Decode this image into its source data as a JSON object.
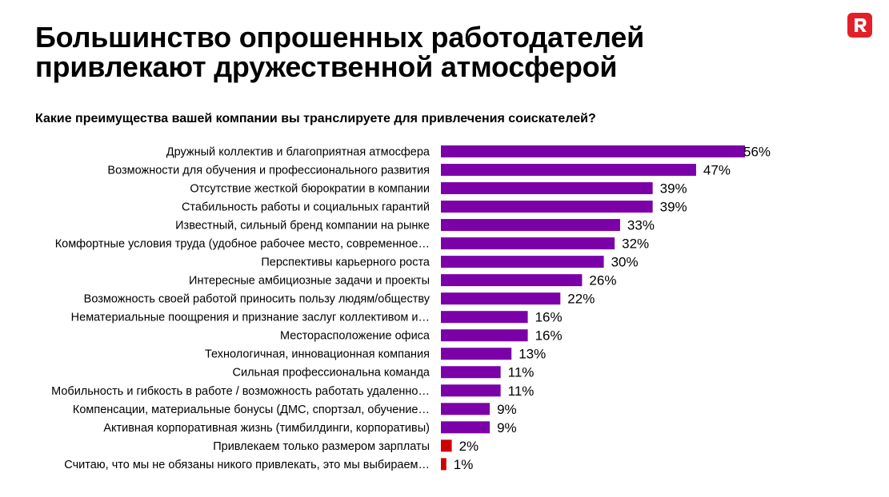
{
  "slide": {
    "title_line1": "Большинство опрошенных работодателей",
    "title_line2": "привлекают дружественной атмосферой",
    "question": "Какие преимущества вашей компании вы транслируете для привлечения соискателей?"
  },
  "logo": {
    "icon": "r-logo-icon",
    "color": "#e1202a"
  },
  "colors": {
    "main_bar": "#7b00a8",
    "highlight_bar": "#cc0000"
  },
  "chart_data": {
    "type": "bar",
    "orientation": "horizontal",
    "title": "Какие преимущества вашей компании вы транслируете для привлечения соискателей?",
    "value_suffix": "%",
    "xlim": [
      0,
      56
    ],
    "categories": [
      "Дружный коллектив и благоприятная атмосфера",
      "Возможности для обучения и профессионального развития",
      "Отсутствие жесткой бюрократии в компании",
      "Стабильность работы и социальных гарантий",
      "Известный, сильный бренд компании на рынке",
      "Комфортные условия труда (удобное рабочее место, современное…",
      "Перспективы карьерного роста",
      "Интересные амбициозные задачи и проекты",
      "Возможность своей работой приносить пользу людям/обществу",
      "Нематериальные поощрения и признание заслуг коллективом и…",
      "Месторасположение офиса",
      "Технологичная, инновационная компания",
      "Сильная профессиональна команда",
      "Мобильность и гибкость в работе / возможность работать удаленно…",
      "Компенсации, материальные бонусы (ДМС, спортзал, обучение…",
      "Активная корпоративная жизнь (тимбилдинги, корпоративы)",
      "Привлекаем только размером зарплаты",
      "Считаю, что мы не обязаны никого привлекать, это мы выбираем…"
    ],
    "values": [
      56,
      47,
      39,
      39,
      33,
      32,
      30,
      26,
      22,
      16,
      16,
      13,
      11,
      11,
      9,
      9,
      2,
      1
    ],
    "highlight": [
      false,
      false,
      false,
      false,
      false,
      false,
      false,
      false,
      false,
      false,
      false,
      false,
      false,
      false,
      false,
      false,
      true,
      true
    ]
  }
}
